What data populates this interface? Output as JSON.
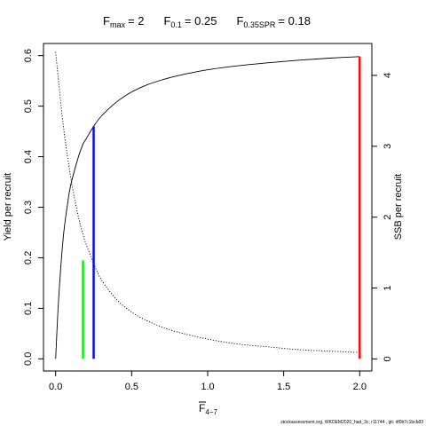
{
  "chart_data": {
    "type": "line",
    "title": {
      "fmax": {
        "main": "F",
        "sub": "max",
        "value": "= 2"
      },
      "f01": {
        "main": "F",
        "sub": "0.1",
        "value": "= 0.25"
      },
      "fspr": {
        "main": "F",
        "sub": "0.35SPR",
        "value": "= 0.18"
      }
    },
    "xlabel": {
      "main": "F",
      "sub": "4−7"
    },
    "ylabel_left": "Yield per recruit",
    "ylabel_right": "SSB per recruit",
    "xlim": [
      -0.08,
      2.08
    ],
    "ylim_left": [
      -0.024,
      0.624
    ],
    "ylim_right": [
      -0.17,
      4.45
    ],
    "x_ticks": [
      "0.0",
      "0.5",
      "1.0",
      "1.5",
      "2.0"
    ],
    "y_ticks_left": [
      "0.0",
      "0.1",
      "0.2",
      "0.3",
      "0.4",
      "0.5",
      "0.6"
    ],
    "y_ticks_right": [
      "0",
      "1",
      "2",
      "3",
      "4"
    ],
    "grid": false,
    "series": [
      {
        "style": "solid",
        "axis": "left",
        "x": [
          0,
          0.02,
          0.05,
          0.08,
          0.1,
          0.15,
          0.18,
          0.2,
          0.25,
          0.3,
          0.4,
          0.5,
          0.6,
          0.7,
          0.8,
          1.0,
          1.2,
          1.4,
          1.6,
          1.8,
          2.0
        ],
        "y": [
          0,
          0.12,
          0.24,
          0.31,
          0.345,
          0.4,
          0.425,
          0.435,
          0.46,
          0.48,
          0.508,
          0.528,
          0.542,
          0.552,
          0.56,
          0.572,
          0.58,
          0.586,
          0.591,
          0.595,
          0.598
        ]
      },
      {
        "style": "dotted",
        "axis": "right",
        "x": [
          0,
          0.05,
          0.1,
          0.15,
          0.18,
          0.2,
          0.25,
          0.3,
          0.4,
          0.5,
          0.6,
          0.7,
          0.8,
          1.0,
          1.2,
          1.4,
          1.6,
          1.8,
          2.0
        ],
        "y": [
          4.33,
          3.3,
          2.55,
          2.0,
          1.76,
          1.62,
          1.35,
          1.12,
          0.84,
          0.66,
          0.54,
          0.45,
          0.38,
          0.28,
          0.21,
          0.17,
          0.13,
          0.11,
          0.09
        ]
      }
    ],
    "reference_lines": [
      {
        "name": "Fmax",
        "x": 2.0,
        "y": 0.598,
        "color": "#ff0000"
      },
      {
        "name": "F0.1",
        "x": 0.25,
        "y": 0.46,
        "color": "#0000ff"
      },
      {
        "name": "F0.35SPR",
        "x": 0.18,
        "y": 0.195,
        "color": "#00ee00"
      }
    ]
  },
  "footer": "stockassessment.org, WKDEM2020_had_3c, r11744 , git: df0b7c1bcb83"
}
